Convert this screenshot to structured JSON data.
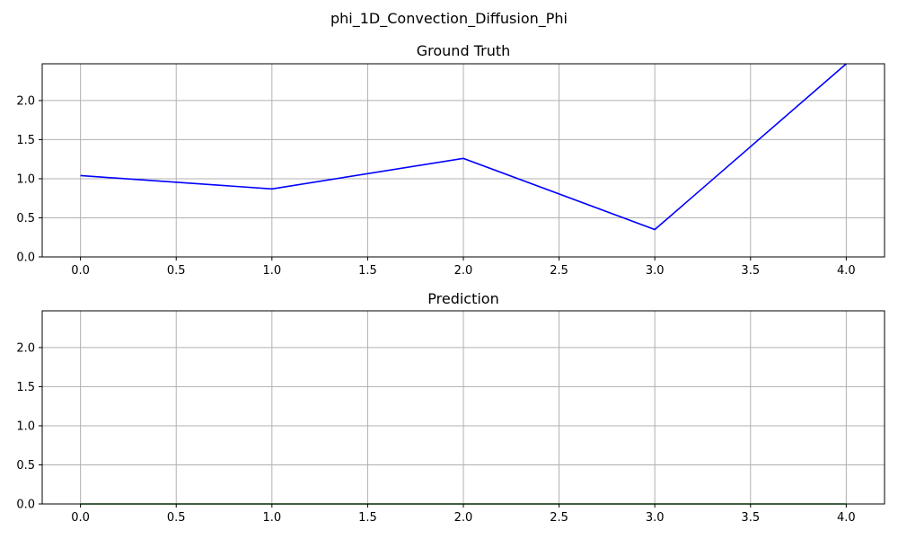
{
  "figure": {
    "suptitle": "phi_1D_Convection_Diffusion_Phi"
  },
  "chart_data": [
    {
      "type": "line",
      "title": "Ground Truth",
      "xlabel": "",
      "ylabel": "",
      "x": [
        0,
        1,
        2,
        3,
        4
      ],
      "series": [
        {
          "values": [
            1.04,
            0.87,
            1.26,
            0.35,
            2.47
          ],
          "color": "#0000ff"
        }
      ],
      "xlim": [
        -0.2,
        4.2
      ],
      "ylim": [
        0,
        2.47
      ],
      "xticks": [
        0.0,
        0.5,
        1.0,
        1.5,
        2.0,
        2.5,
        3.0,
        3.5,
        4.0
      ],
      "xtick_labels": [
        "0.0",
        "0.5",
        "1.0",
        "1.5",
        "2.0",
        "2.5",
        "3.0",
        "3.5",
        "4.0"
      ],
      "yticks": [
        0.0,
        0.5,
        1.0,
        1.5,
        2.0
      ],
      "ytick_labels": [
        "0.0",
        "0.5",
        "1.0",
        "1.5",
        "2.0"
      ],
      "grid": true
    },
    {
      "type": "line",
      "title": "Prediction",
      "xlabel": "",
      "ylabel": "",
      "x": [
        0,
        1,
        2,
        3,
        4
      ],
      "series": [
        {
          "values": [
            0,
            0,
            0,
            0,
            0
          ],
          "color": "#008000"
        }
      ],
      "xlim": [
        -0.2,
        4.2
      ],
      "ylim": [
        0,
        2.47
      ],
      "xticks": [
        0.0,
        0.5,
        1.0,
        1.5,
        2.0,
        2.5,
        3.0,
        3.5,
        4.0
      ],
      "xtick_labels": [
        "0.0",
        "0.5",
        "1.0",
        "1.5",
        "2.0",
        "2.5",
        "3.0",
        "3.5",
        "4.0"
      ],
      "yticks": [
        0.0,
        0.5,
        1.0,
        1.5,
        2.0
      ],
      "ytick_labels": [
        "0.0",
        "0.5",
        "1.0",
        "1.5",
        "2.0"
      ],
      "grid": true
    }
  ]
}
